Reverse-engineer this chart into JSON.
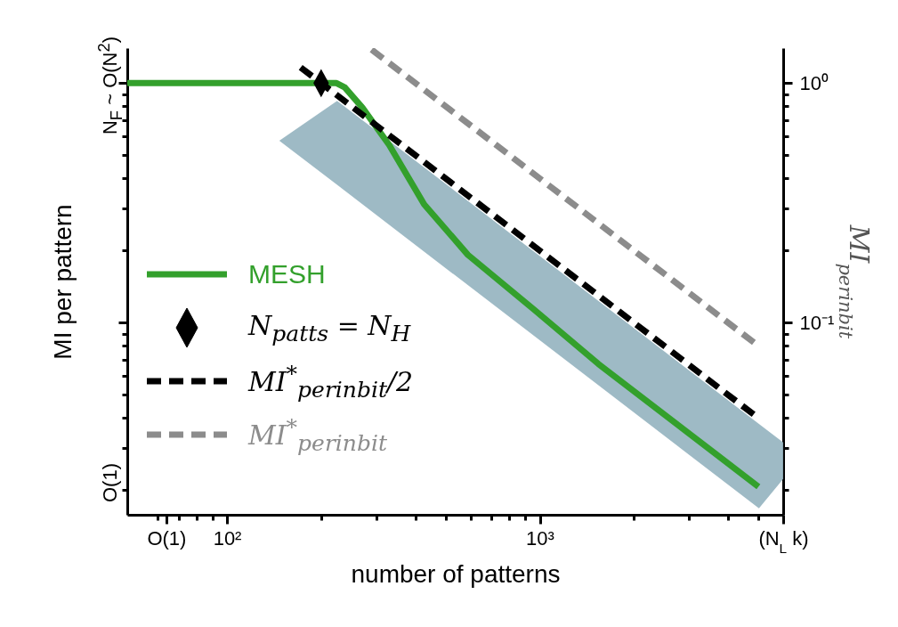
{
  "chart_data": {
    "type": "line",
    "xlabel": "number of patterns",
    "ylabel": "MI per pattern",
    "y2label": "MI$_{perinbit}$",
    "log": "xy",
    "grid": false,
    "legend": "center left",
    "annotations": [
      "N$_{F}$ ~ O(N$^{2}$)",
      "O(1)"
    ],
    "xlim": [
      48,
      6000
    ],
    "ylim": [
      0.0158,
      1.4
    ],
    "xticks": [
      {
        "value": 100,
        "label": "10²"
      },
      {
        "value": 1000,
        "label": "10³"
      },
      {
        "value": 64,
        "label": "O(1)"
      },
      {
        "value": 6000,
        "label": "(N$_{L}$ k)"
      },
      {
        "value": 60,
        "label": null
      },
      {
        "value": 70,
        "label": null
      },
      {
        "value": 80,
        "label": null
      },
      {
        "value": 90,
        "label": null
      },
      {
        "value": 200,
        "label": null
      },
      {
        "value": 300,
        "label": null
      },
      {
        "value": 400,
        "label": null
      },
      {
        "value": 500,
        "label": null
      },
      {
        "value": 600,
        "label": null
      },
      {
        "value": 700,
        "label": null
      },
      {
        "value": 800,
        "label": null
      },
      {
        "value": 900,
        "label": null
      },
      {
        "value": 2000,
        "label": null
      },
      {
        "value": 3000,
        "label": null
      },
      {
        "value": 4000,
        "label": null
      },
      {
        "value": 5000,
        "label": null
      }
    ],
    "yticks": [
      {
        "value": 1,
        "label": "10⁰"
      },
      {
        "value": 0.1,
        "label": "10⁻¹"
      },
      {
        "value": 0.9,
        "label": null
      },
      {
        "value": 0.8,
        "label": null
      },
      {
        "value": 0.7,
        "label": null
      },
      {
        "value": 0.6,
        "label": null
      },
      {
        "value": 0.5,
        "label": null
      },
      {
        "value": 0.4,
        "label": null
      },
      {
        "value": 0.3,
        "label": null
      },
      {
        "value": 0.2,
        "label": null
      },
      {
        "value": 0.09,
        "label": null
      },
      {
        "value": 0.08,
        "label": null
      },
      {
        "value": 0.07,
        "label": null
      },
      {
        "value": 0.06,
        "label": null
      },
      {
        "value": 0.05,
        "label": null
      },
      {
        "value": 0.04,
        "label": null
      },
      {
        "value": 0.03,
        "label": null
      },
      {
        "value": 0.02,
        "label": null
      }
    ],
    "series": [
      {
        "type": "area",
        "color": "#93b2bf",
        "x": [
          147,
          225,
          5020,
          6000
        ],
        "values": [
          null,
          null,
          null,
          null
        ],
        "upper": [
          0.575,
          0.844,
          0.0378,
          0.0317
        ],
        "lower": [
          0.575,
          0.376,
          0.0168,
          0.0223
        ]
      },
      {
        "type": "line",
        "name": "MESH",
        "color": "#33a02c",
        "line_style": "solid",
        "x": [
          48,
          100,
          150,
          200,
          224,
          238,
          271,
          330,
          427,
          589,
          955,
          1540,
          2950,
          5000
        ],
        "values": [
          1,
          1,
          1,
          1,
          1,
          0.96,
          0.79,
          0.552,
          0.312,
          0.192,
          0.114,
          0.0673,
          0.0351,
          0.0207
        ]
      },
      {
        "type": "scatter",
        "name": "N$_{patts}$ = N$_{H}$",
        "color": "#000000",
        "marker": "diamond",
        "x": [
          200
        ],
        "values": [
          1
        ]
      },
      {
        "type": "line",
        "name": "MI$^{*}$$_{perinbit}$/2",
        "color": "#000000",
        "line_style": "dashed",
        "x": [
          172,
          5000
        ],
        "values": [
          1.163,
          0.04
        ]
      },
      {
        "type": "line",
        "name": "MI$^{*}$$_{perinbit}$",
        "color": "#8c8c8c",
        "line_style": "dashed",
        "x": [
          290,
          5000
        ],
        "values": [
          1.38,
          0.08
        ]
      }
    ]
  }
}
